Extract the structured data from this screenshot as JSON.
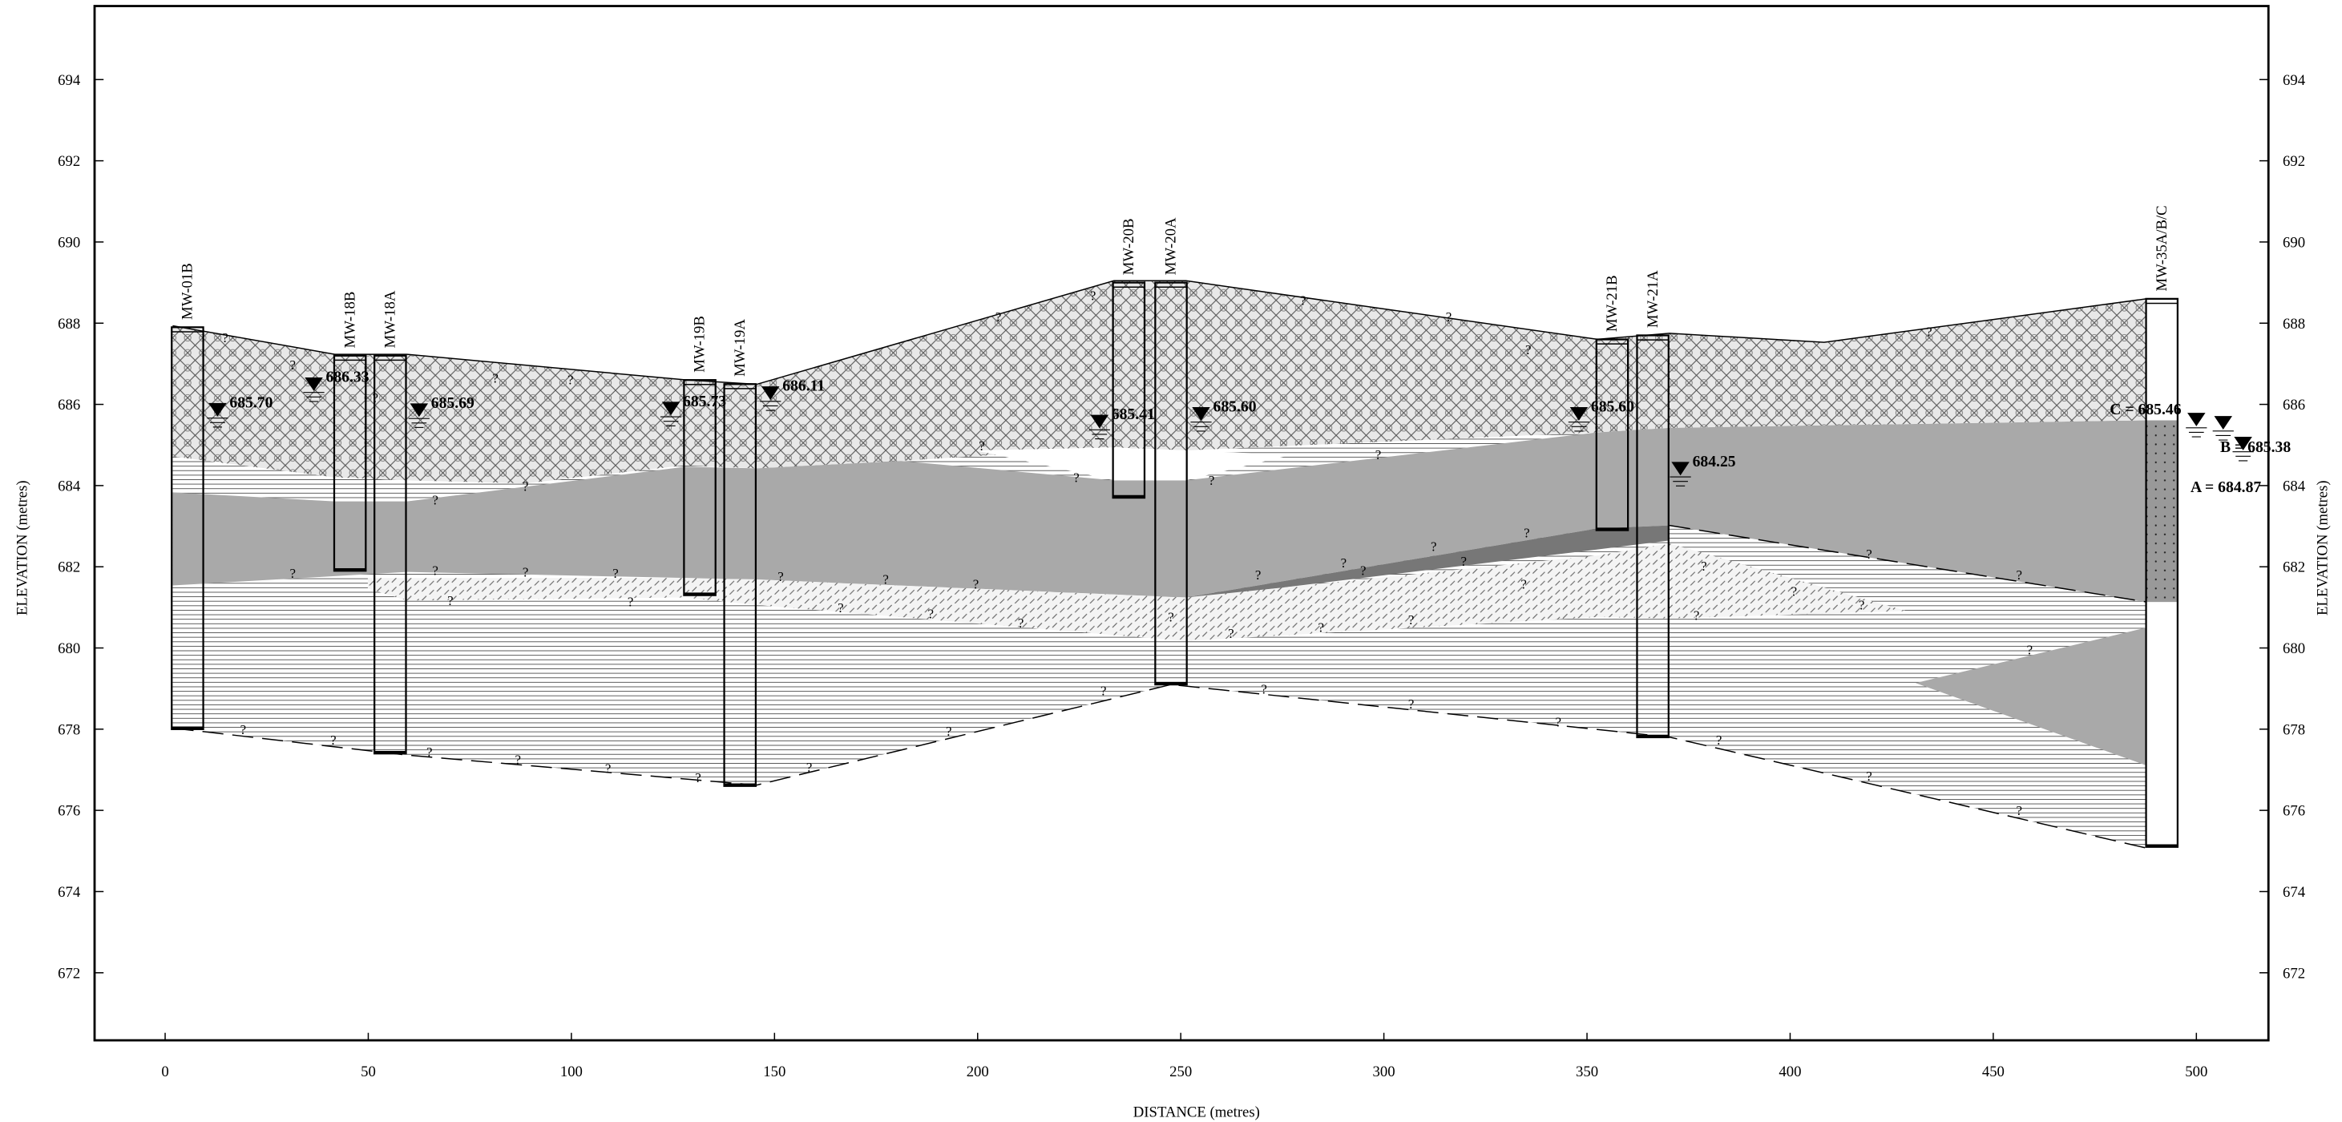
{
  "x_axis": {
    "label": "DISTANCE (metres)",
    "ticks": [
      0,
      50,
      100,
      150,
      200,
      250,
      300,
      350,
      400,
      450,
      500
    ]
  },
  "y_axis": {
    "label": "ELEVATION (metres)",
    "ticks": [
      672,
      674,
      676,
      678,
      680,
      682,
      684,
      686,
      688,
      690,
      692,
      694
    ]
  },
  "y_axis_right": {
    "label": "ELEVATION (metres)",
    "ticks": [
      672,
      674,
      676,
      678,
      680,
      682,
      684,
      686,
      688,
      690,
      692,
      694
    ]
  },
  "wells": [
    {
      "name": "MW-01B",
      "distance": 5.5,
      "top": 687.9,
      "bottom": 678.0
    },
    {
      "name": "MW-18B",
      "distance": 45.5,
      "top": 687.2,
      "bottom": 681.9
    },
    {
      "name": "MW-18A",
      "distance": 55.4,
      "top": 687.2,
      "bottom": 677.4
    },
    {
      "name": "MW-19B",
      "distance": 131.6,
      "top": 686.6,
      "bottom": 681.3
    },
    {
      "name": "MW-19A",
      "distance": 141.5,
      "top": 686.5,
      "bottom": 676.6
    },
    {
      "name": "MW-20B",
      "distance": 237.2,
      "top": 689.0,
      "bottom": 683.7
    },
    {
      "name": "MW-20A",
      "distance": 247.6,
      "top": 689.0,
      "bottom": 679.1
    },
    {
      "name": "MW-21B",
      "distance": 356.2,
      "top": 687.6,
      "bottom": 682.9
    },
    {
      "name": "MW-21A",
      "distance": 366.2,
      "top": 687.7,
      "bottom": 677.8
    },
    {
      "name": "MW-35A/B/C",
      "distance": 491.5,
      "top": 688.6,
      "bottom": 675.1
    }
  ],
  "water_levels": [
    {
      "label": "685.70",
      "distance": 12.9,
      "elevation": 685.7
    },
    {
      "label": "686.33",
      "distance": 36.6,
      "elevation": 686.33
    },
    {
      "label": "685.69",
      "distance": 62.5,
      "elevation": 685.69
    },
    {
      "label": "685.73",
      "distance": 124.5,
      "elevation": 685.73
    },
    {
      "label": "686.11",
      "distance": 149.0,
      "elevation": 686.11
    },
    {
      "label": "685.41",
      "distance": 230.0,
      "elevation": 685.41
    },
    {
      "label": "685.60",
      "distance": 255.0,
      "elevation": 685.6
    },
    {
      "label": "685.60",
      "distance": 348.0,
      "elevation": 685.6
    },
    {
      "label": "684.25",
      "distance": 373.0,
      "elevation": 684.25
    },
    {
      "label": "C = 685.46",
      "distance": 500.0,
      "elevation": 685.46
    },
    {
      "label": "B = 685.38",
      "distance": 506.6,
      "elevation": 685.38
    },
    {
      "label": "A = 684.87",
      "distance": 511.5,
      "elevation": 684.87
    }
  ],
  "uncertain_contact_symbol": "?"
}
